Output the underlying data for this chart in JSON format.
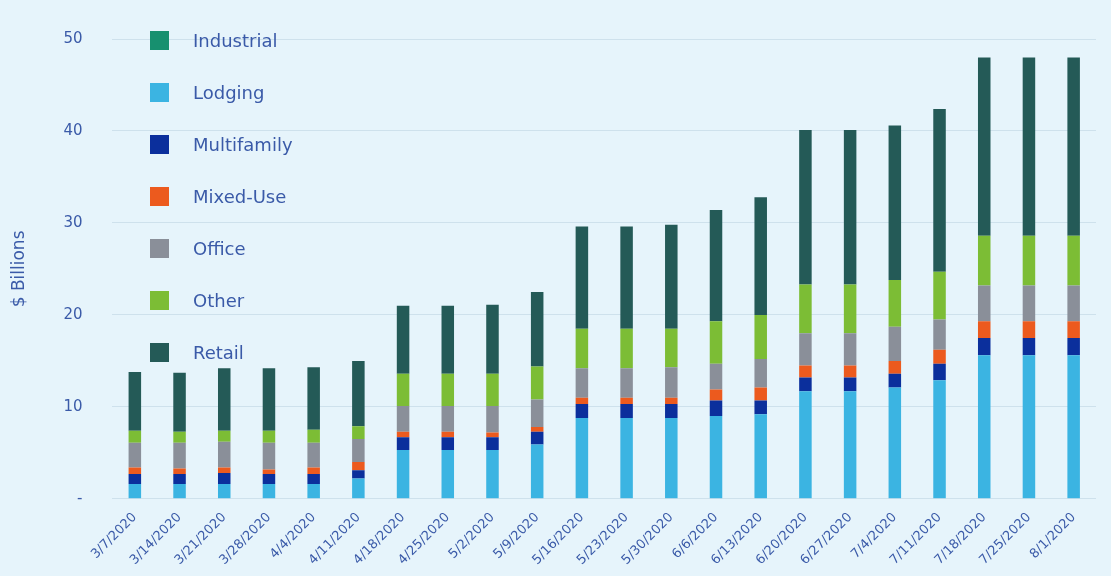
{
  "chart_data": {
    "type": "bar",
    "stacked": true,
    "ylabel": "$ Billions",
    "categories": [
      "3/7/2020",
      "3/14/2020",
      "3/21/2020",
      "3/28/2020",
      "4/4/2020",
      "4/11/2020",
      "4/18/2020",
      "4/25/2020",
      "5/2/2020",
      "5/9/2020",
      "5/16/2020",
      "5/23/2020",
      "5/30/2020",
      "6/6/2020",
      "6/13/2020",
      "6/20/2020",
      "6/27/2020",
      "7/4/2020",
      "7/11/2020",
      "7/18/2020",
      "7/25/2020",
      "8/1/2020"
    ],
    "series": [
      {
        "name": "Industrial",
        "color": "#17906f",
        "values": [
          null,
          null,
          null,
          null,
          null,
          null,
          null,
          null,
          null,
          null,
          null,
          null,
          null,
          null,
          null,
          null,
          null,
          null,
          null,
          null,
          null,
          null
        ]
      },
      {
        "name": "Lodging",
        "color": "#3bb4e2",
        "values": [
          1.6,
          1.6,
          1.6,
          1.6,
          1.6,
          2.2,
          5.3,
          5.3,
          5.3,
          5.9,
          8.8,
          8.8,
          8.8,
          9.0,
          9.2,
          11.7,
          11.7,
          12.1,
          12.9,
          15.6,
          15.6,
          15.6
        ]
      },
      {
        "name": "Multifamily",
        "color": "#0b2f9c",
        "values": [
          1.1,
          1.1,
          1.2,
          1.1,
          1.1,
          0.9,
          1.4,
          1.4,
          1.4,
          1.4,
          1.5,
          1.5,
          1.5,
          1.7,
          1.5,
          1.5,
          1.5,
          1.5,
          1.8,
          1.9,
          1.9,
          1.9
        ]
      },
      {
        "name": "Mixed-Use",
        "color": "#ec5a1e",
        "values": [
          0.7,
          0.6,
          0.6,
          0.5,
          0.7,
          0.9,
          0.6,
          0.6,
          0.5,
          0.5,
          0.7,
          0.7,
          0.7,
          1.2,
          1.4,
          1.3,
          1.3,
          1.4,
          1.5,
          1.8,
          1.8,
          1.8
        ]
      },
      {
        "name": "Office",
        "color": "#8a8f99",
        "values": [
          2.7,
          2.8,
          2.8,
          2.9,
          2.7,
          2.5,
          2.8,
          2.8,
          2.9,
          3.0,
          3.2,
          3.2,
          3.3,
          2.8,
          3.1,
          3.5,
          3.5,
          3.7,
          3.3,
          3.9,
          3.9,
          3.9
        ]
      },
      {
        "name": "Other",
        "color": "#7cbd35",
        "values": [
          1.3,
          1.2,
          1.2,
          1.3,
          1.4,
          1.4,
          3.5,
          3.5,
          3.5,
          3.6,
          4.3,
          4.3,
          4.2,
          4.6,
          4.8,
          5.3,
          5.3,
          5.1,
          5.2,
          5.4,
          5.4,
          5.4
        ]
      },
      {
        "name": "Retail",
        "color": "#245a57",
        "values": [
          6.4,
          6.4,
          6.8,
          6.8,
          6.8,
          7.1,
          7.4,
          7.4,
          7.5,
          8.1,
          11.1,
          11.1,
          11.3,
          12.1,
          12.8,
          16.8,
          16.8,
          16.8,
          17.7,
          19.4,
          19.4,
          19.4
        ]
      }
    ],
    "ylim": [
      0,
      50
    ],
    "yticks": [
      {
        "value": 0,
        "label": "-"
      },
      10,
      20,
      30,
      40,
      50
    ],
    "grid": "y",
    "legend": "top left"
  }
}
